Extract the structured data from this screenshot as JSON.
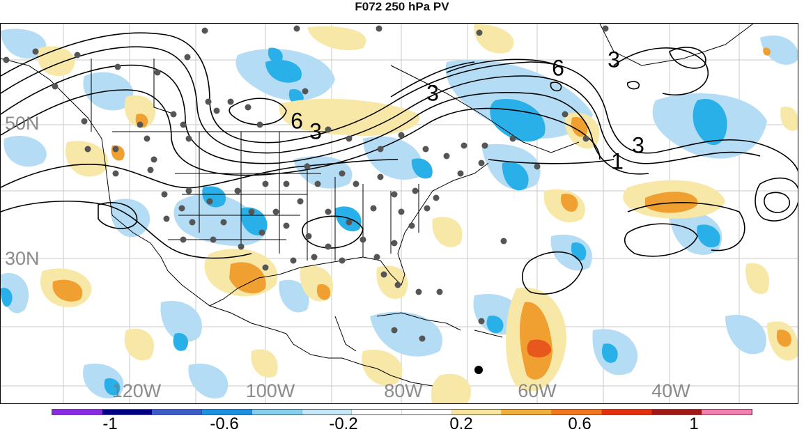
{
  "title": "F072 250 hPa PV",
  "latitude_labels": [
    "50N",
    "30N"
  ],
  "longitude_labels": [
    "120W",
    "100W",
    "80W",
    "60W",
    "40W"
  ],
  "contour_labels": [
    "6",
    "3",
    "6",
    "3",
    "3",
    "1",
    "3"
  ],
  "colorbar": {
    "colors": [
      "#8a2be2",
      "#000080",
      "#3c5bc8",
      "#1e90e0",
      "#87cef0",
      "#c8e8f8",
      "#ffffff",
      "#ffffff",
      "#f8e6a0",
      "#f0b040",
      "#f07820",
      "#e03010",
      "#a01818",
      "#f080b0"
    ],
    "tick_labels": [
      "-1",
      "-0.6",
      "-0.2",
      "0.2",
      "0.6",
      "1"
    ]
  },
  "shading_colors": {
    "light_blue": "#b4dcf4",
    "mid_blue": "#2ab0e8",
    "light_orange": "#f8e8a8",
    "mid_orange": "#f0a030",
    "dark_orange": "#e8581c"
  }
}
